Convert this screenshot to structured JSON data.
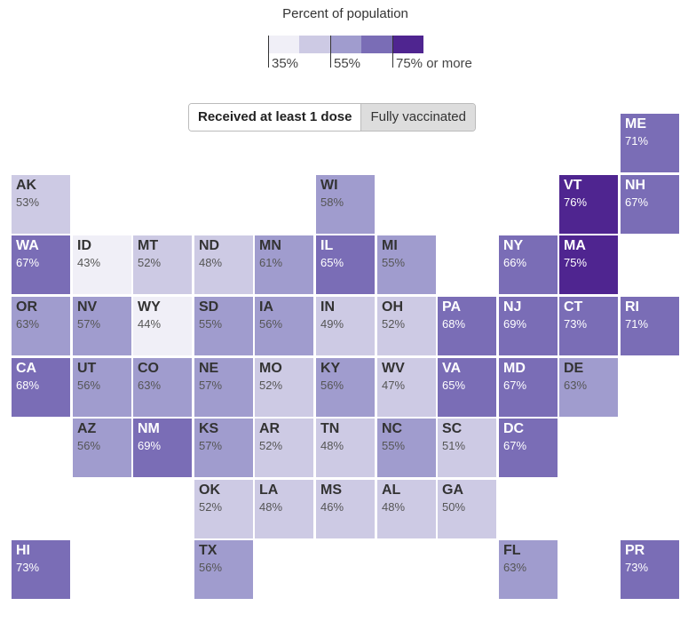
{
  "legend": {
    "title": "Percent of population",
    "labels": [
      "35%",
      "55%",
      "75% or more"
    ],
    "colors": [
      "#f0eff7",
      "#cdcae4",
      "#a09cce",
      "#7a6db6",
      "#4f2590"
    ]
  },
  "toggle": {
    "options": [
      "Received at least 1 dose",
      "Fully vaccinated"
    ],
    "selected": "Received at least 1 dose"
  },
  "states": [
    {
      "abbr": "ME",
      "value": "71%",
      "row": 0,
      "col": 10
    },
    {
      "abbr": "AK",
      "value": "53%",
      "row": 1,
      "col": 0
    },
    {
      "abbr": "WI",
      "value": "58%",
      "row": 1,
      "col": 5
    },
    {
      "abbr": "VT",
      "value": "76%",
      "row": 1,
      "col": 9
    },
    {
      "abbr": "NH",
      "value": "67%",
      "row": 1,
      "col": 10
    },
    {
      "abbr": "WA",
      "value": "67%",
      "row": 2,
      "col": 0
    },
    {
      "abbr": "ID",
      "value": "43%",
      "row": 2,
      "col": 1
    },
    {
      "abbr": "MT",
      "value": "52%",
      "row": 2,
      "col": 2
    },
    {
      "abbr": "ND",
      "value": "48%",
      "row": 2,
      "col": 3
    },
    {
      "abbr": "MN",
      "value": "61%",
      "row": 2,
      "col": 4
    },
    {
      "abbr": "IL",
      "value": "65%",
      "row": 2,
      "col": 5
    },
    {
      "abbr": "MI",
      "value": "55%",
      "row": 2,
      "col": 6
    },
    {
      "abbr": "NY",
      "value": "66%",
      "row": 2,
      "col": 8
    },
    {
      "abbr": "MA",
      "value": "75%",
      "row": 2,
      "col": 9
    },
    {
      "abbr": "OR",
      "value": "63%",
      "row": 3,
      "col": 0
    },
    {
      "abbr": "NV",
      "value": "57%",
      "row": 3,
      "col": 1
    },
    {
      "abbr": "WY",
      "value": "44%",
      "row": 3,
      "col": 2
    },
    {
      "abbr": "SD",
      "value": "55%",
      "row": 3,
      "col": 3
    },
    {
      "abbr": "IA",
      "value": "56%",
      "row": 3,
      "col": 4
    },
    {
      "abbr": "IN",
      "value": "49%",
      "row": 3,
      "col": 5
    },
    {
      "abbr": "OH",
      "value": "52%",
      "row": 3,
      "col": 6
    },
    {
      "abbr": "PA",
      "value": "68%",
      "row": 3,
      "col": 7
    },
    {
      "abbr": "NJ",
      "value": "69%",
      "row": 3,
      "col": 8
    },
    {
      "abbr": "CT",
      "value": "73%",
      "row": 3,
      "col": 9
    },
    {
      "abbr": "RI",
      "value": "71%",
      "row": 3,
      "col": 10
    },
    {
      "abbr": "CA",
      "value": "68%",
      "row": 4,
      "col": 0
    },
    {
      "abbr": "UT",
      "value": "56%",
      "row": 4,
      "col": 1
    },
    {
      "abbr": "CO",
      "value": "63%",
      "row": 4,
      "col": 2
    },
    {
      "abbr": "NE",
      "value": "57%",
      "row": 4,
      "col": 3
    },
    {
      "abbr": "MO",
      "value": "52%",
      "row": 4,
      "col": 4
    },
    {
      "abbr": "KY",
      "value": "56%",
      "row": 4,
      "col": 5
    },
    {
      "abbr": "WV",
      "value": "47%",
      "row": 4,
      "col": 6
    },
    {
      "abbr": "VA",
      "value": "65%",
      "row": 4,
      "col": 7
    },
    {
      "abbr": "MD",
      "value": "67%",
      "row": 4,
      "col": 8
    },
    {
      "abbr": "DE",
      "value": "63%",
      "row": 4,
      "col": 9
    },
    {
      "abbr": "AZ",
      "value": "56%",
      "row": 5,
      "col": 1
    },
    {
      "abbr": "NM",
      "value": "69%",
      "row": 5,
      "col": 2
    },
    {
      "abbr": "KS",
      "value": "57%",
      "row": 5,
      "col": 3
    },
    {
      "abbr": "AR",
      "value": "52%",
      "row": 5,
      "col": 4
    },
    {
      "abbr": "TN",
      "value": "48%",
      "row": 5,
      "col": 5
    },
    {
      "abbr": "NC",
      "value": "55%",
      "row": 5,
      "col": 6
    },
    {
      "abbr": "SC",
      "value": "51%",
      "row": 5,
      "col": 7
    },
    {
      "abbr": "DC",
      "value": "67%",
      "row": 5,
      "col": 8
    },
    {
      "abbr": "OK",
      "value": "52%",
      "row": 6,
      "col": 3
    },
    {
      "abbr": "LA",
      "value": "48%",
      "row": 6,
      "col": 4
    },
    {
      "abbr": "MS",
      "value": "46%",
      "row": 6,
      "col": 5
    },
    {
      "abbr": "AL",
      "value": "48%",
      "row": 6,
      "col": 6
    },
    {
      "abbr": "GA",
      "value": "50%",
      "row": 6,
      "col": 7
    },
    {
      "abbr": "HI",
      "value": "73%",
      "row": 7,
      "col": 0
    },
    {
      "abbr": "TX",
      "value": "56%",
      "row": 7,
      "col": 3
    },
    {
      "abbr": "FL",
      "value": "63%",
      "row": 7,
      "col": 8
    },
    {
      "abbr": "PR",
      "value": "73%",
      "row": 7,
      "col": 10
    }
  ]
}
